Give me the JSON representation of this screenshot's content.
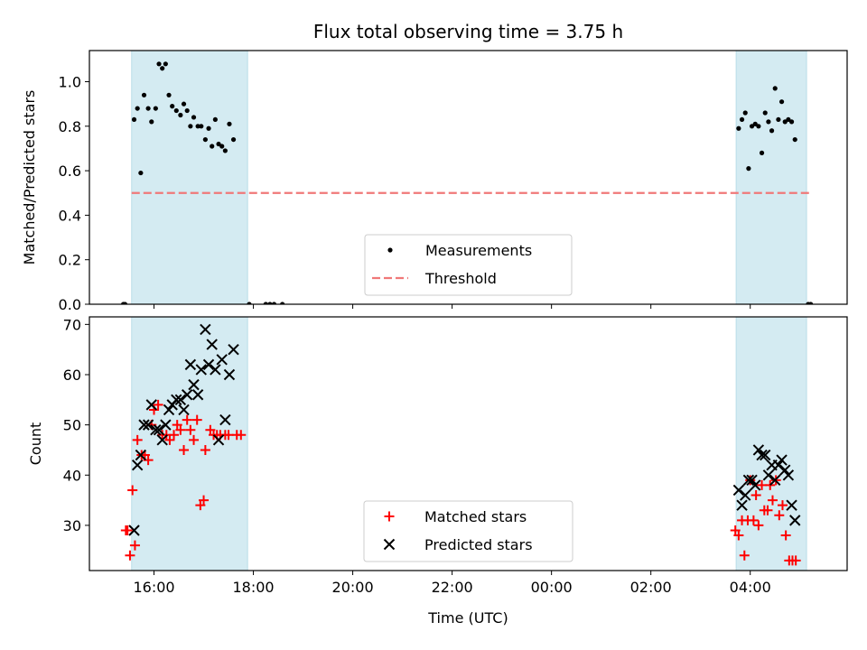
{
  "chart_data": {
    "title": "Flux total observing time = 3.75 h",
    "xlabel": "Time (UTC)",
    "x_ticks": [
      "16:00",
      "18:00",
      "20:00",
      "22:00",
      "00:00",
      "02:00",
      "04:00"
    ],
    "shaded_intervals": [
      [
        "15:33",
        "17:53"
      ],
      [
        "03:43",
        "05:08"
      ]
    ],
    "shade_color": "#d4ebf2",
    "panels": [
      {
        "type": "scatter",
        "ylabel": "Matched/Predicted stars",
        "ylim": [
          0,
          1.14
        ],
        "y_ticks": [
          0.0,
          0.2,
          0.4,
          0.6,
          0.8,
          1.0
        ],
        "legend_position": "lower center",
        "series": [
          {
            "name": "Measurements",
            "marker": "dot",
            "color": "#000000",
            "points": [
              [
                "15:23",
                0
              ],
              [
                "15:25",
                0
              ],
              [
                "15:36",
                0.83
              ],
              [
                "15:40",
                0.88
              ],
              [
                "15:44",
                0.59
              ],
              [
                "15:48",
                0.94
              ],
              [
                "15:53",
                0.88
              ],
              [
                "15:57",
                0.82
              ],
              [
                "16:02",
                0.88
              ],
              [
                "16:06",
                1.08
              ],
              [
                "16:10",
                1.06
              ],
              [
                "16:14",
                1.08
              ],
              [
                "16:18",
                0.94
              ],
              [
                "16:22",
                0.89
              ],
              [
                "16:27",
                0.87
              ],
              [
                "16:32",
                0.85
              ],
              [
                "16:36",
                0.9
              ],
              [
                "16:40",
                0.87
              ],
              [
                "16:44",
                0.8
              ],
              [
                "16:48",
                0.84
              ],
              [
                "16:53",
                0.8
              ],
              [
                "16:57",
                0.8
              ],
              [
                "17:02",
                0.74
              ],
              [
                "17:06",
                0.79
              ],
              [
                "17:10",
                0.71
              ],
              [
                "17:14",
                0.83
              ],
              [
                "17:18",
                0.72
              ],
              [
                "17:22",
                0.71
              ],
              [
                "17:26",
                0.69
              ],
              [
                "17:31",
                0.81
              ],
              [
                "17:36",
                0.74
              ],
              [
                "17:55",
                0
              ],
              [
                "18:15",
                0
              ],
              [
                "18:20",
                0
              ],
              [
                "18:25",
                0
              ],
              [
                "18:35",
                0
              ],
              [
                "03:46",
                0.79
              ],
              [
                "03:50",
                0.83
              ],
              [
                "03:54",
                0.86
              ],
              [
                "03:58",
                0.61
              ],
              [
                "04:02",
                0.8
              ],
              [
                "04:06",
                0.81
              ],
              [
                "04:10",
                0.8
              ],
              [
                "04:14",
                0.68
              ],
              [
                "04:18",
                0.86
              ],
              [
                "04:22",
                0.82
              ],
              [
                "04:26",
                0.78
              ],
              [
                "04:30",
                0.97
              ],
              [
                "04:34",
                0.83
              ],
              [
                "04:38",
                0.91
              ],
              [
                "04:42",
                0.82
              ],
              [
                "04:46",
                0.83
              ],
              [
                "04:50",
                0.82
              ],
              [
                "04:54",
                0.74
              ],
              [
                "05:10",
                0
              ],
              [
                "05:13",
                0
              ]
            ]
          },
          {
            "name": "Threshold",
            "type": "line",
            "style": "dashed",
            "color": "#f07878",
            "x": [
              "15:33",
              "05:13"
            ],
            "value": 0.5
          }
        ]
      },
      {
        "type": "scatter",
        "ylabel": "Count",
        "ylim": [
          21,
          71.5
        ],
        "y_ticks": [
          30,
          40,
          50,
          60,
          70
        ],
        "legend_position": "lower center",
        "series": [
          {
            "name": "Matched stars",
            "marker": "plus",
            "color": "#ff0000",
            "points": [
              [
                "15:26",
                29
              ],
              [
                "15:28",
                29
              ],
              [
                "15:31",
                24
              ],
              [
                "15:34",
                37
              ],
              [
                "15:37",
                26
              ],
              [
                "15:40",
                47
              ],
              [
                "15:45",
                44
              ],
              [
                "15:49",
                44
              ],
              [
                "15:53",
                43
              ],
              [
                "15:57",
                50
              ],
              [
                "16:00",
                53
              ],
              [
                "16:05",
                54
              ],
              [
                "16:10",
                48
              ],
              [
                "16:15",
                48
              ],
              [
                "16:19",
                47
              ],
              [
                "16:24",
                48
              ],
              [
                "16:28",
                50
              ],
              [
                "16:32",
                49
              ],
              [
                "16:36",
                45
              ],
              [
                "16:40",
                51
              ],
              [
                "16:44",
                49
              ],
              [
                "16:48",
                47
              ],
              [
                "16:52",
                51
              ],
              [
                "16:56",
                34
              ],
              [
                "17:00",
                35
              ],
              [
                "17:02",
                45
              ],
              [
                "17:08",
                49
              ],
              [
                "17:12",
                48
              ],
              [
                "17:16",
                48
              ],
              [
                "17:20",
                48
              ],
              [
                "17:26",
                48
              ],
              [
                "17:30",
                48
              ],
              [
                "17:40",
                48
              ],
              [
                "17:45",
                48
              ],
              [
                "03:42",
                29
              ],
              [
                "03:46",
                28
              ],
              [
                "03:50",
                31
              ],
              [
                "03:53",
                24
              ],
              [
                "03:57",
                31
              ],
              [
                "04:00",
                39
              ],
              [
                "04:04",
                31
              ],
              [
                "04:07",
                36
              ],
              [
                "04:10",
                30
              ],
              [
                "04:14",
                38
              ],
              [
                "04:17",
                33
              ],
              [
                "04:21",
                33
              ],
              [
                "04:24",
                38
              ],
              [
                "04:27",
                35
              ],
              [
                "04:31",
                39
              ],
              [
                "04:35",
                32
              ],
              [
                "04:39",
                34
              ],
              [
                "04:43",
                28
              ],
              [
                "04:47",
                23
              ],
              [
                "04:51",
                23
              ],
              [
                "04:55",
                23
              ]
            ]
          },
          {
            "name": "Predicted stars",
            "marker": "x",
            "color": "#000000",
            "points": [
              [
                "15:36",
                29
              ],
              [
                "15:40",
                42
              ],
              [
                "15:44",
                44
              ],
              [
                "15:48",
                50
              ],
              [
                "15:53",
                50
              ],
              [
                "15:57",
                54
              ],
              [
                "16:02",
                49
              ],
              [
                "16:06",
                49
              ],
              [
                "16:10",
                47
              ],
              [
                "16:14",
                50
              ],
              [
                "16:18",
                53
              ],
              [
                "16:22",
                54
              ],
              [
                "16:27",
                55
              ],
              [
                "16:32",
                55
              ],
              [
                "16:36",
                53
              ],
              [
                "16:40",
                56
              ],
              [
                "16:44",
                62
              ],
              [
                "16:48",
                58
              ],
              [
                "16:53",
                56
              ],
              [
                "16:57",
                61
              ],
              [
                "17:02",
                69
              ],
              [
                "17:06",
                62
              ],
              [
                "17:10",
                66
              ],
              [
                "17:14",
                61
              ],
              [
                "17:18",
                47
              ],
              [
                "17:22",
                63
              ],
              [
                "17:26",
                51
              ],
              [
                "17:31",
                60
              ],
              [
                "17:36",
                65
              ],
              [
                "03:46",
                37
              ],
              [
                "03:50",
                34
              ],
              [
                "03:54",
                36
              ],
              [
                "03:58",
                39
              ],
              [
                "04:02",
                39
              ],
              [
                "04:06",
                38
              ],
              [
                "04:10",
                45
              ],
              [
                "04:14",
                44
              ],
              [
                "04:18",
                44
              ],
              [
                "04:22",
                40
              ],
              [
                "04:26",
                42
              ],
              [
                "04:30",
                39
              ],
              [
                "04:34",
                42
              ],
              [
                "04:38",
                43
              ],
              [
                "04:42",
                41
              ],
              [
                "04:46",
                40
              ],
              [
                "04:50",
                34
              ],
              [
                "04:54",
                31
              ]
            ]
          }
        ]
      }
    ]
  }
}
